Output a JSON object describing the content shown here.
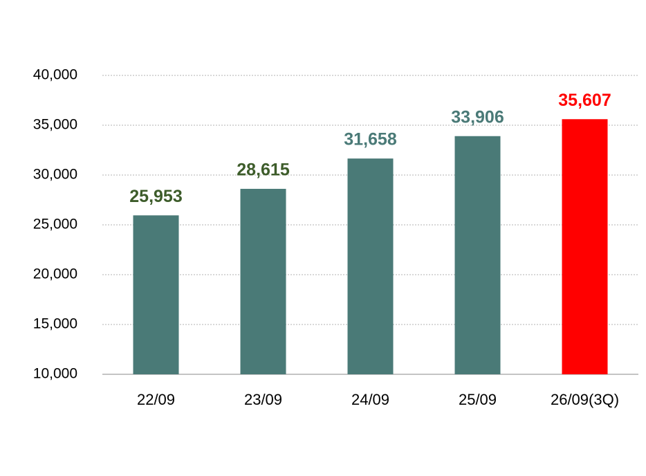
{
  "chart_data": {
    "type": "bar",
    "categories": [
      "22/09",
      "23/09",
      "24/09",
      "25/09",
      "26/09(3Q)"
    ],
    "values": [
      25953,
      28615,
      31658,
      33906,
      35607
    ],
    "value_labels": [
      "25,953",
      "28,615",
      "31,658",
      "33,906",
      "35,607"
    ],
    "colors": [
      "#4a7a77",
      "#4a7a77",
      "#4a7a77",
      "#4a7a77",
      "#ff0000"
    ],
    "label_colors": [
      "#3d5c2a",
      "#3d5c2a",
      "#4a7a77",
      "#4a7a77",
      "#ff0000"
    ],
    "ylim": [
      10000,
      40000
    ],
    "yticks": [
      {
        "value": 10000,
        "label": "10,000"
      },
      {
        "value": 15000,
        "label": "15,000"
      },
      {
        "value": 20000,
        "label": "20,000"
      },
      {
        "value": 25000,
        "label": "25,000"
      },
      {
        "value": 30000,
        "label": "30,000"
      },
      {
        "value": 35000,
        "label": "35,000"
      },
      {
        "value": 40000,
        "label": "40,000"
      }
    ],
    "grid": true
  }
}
